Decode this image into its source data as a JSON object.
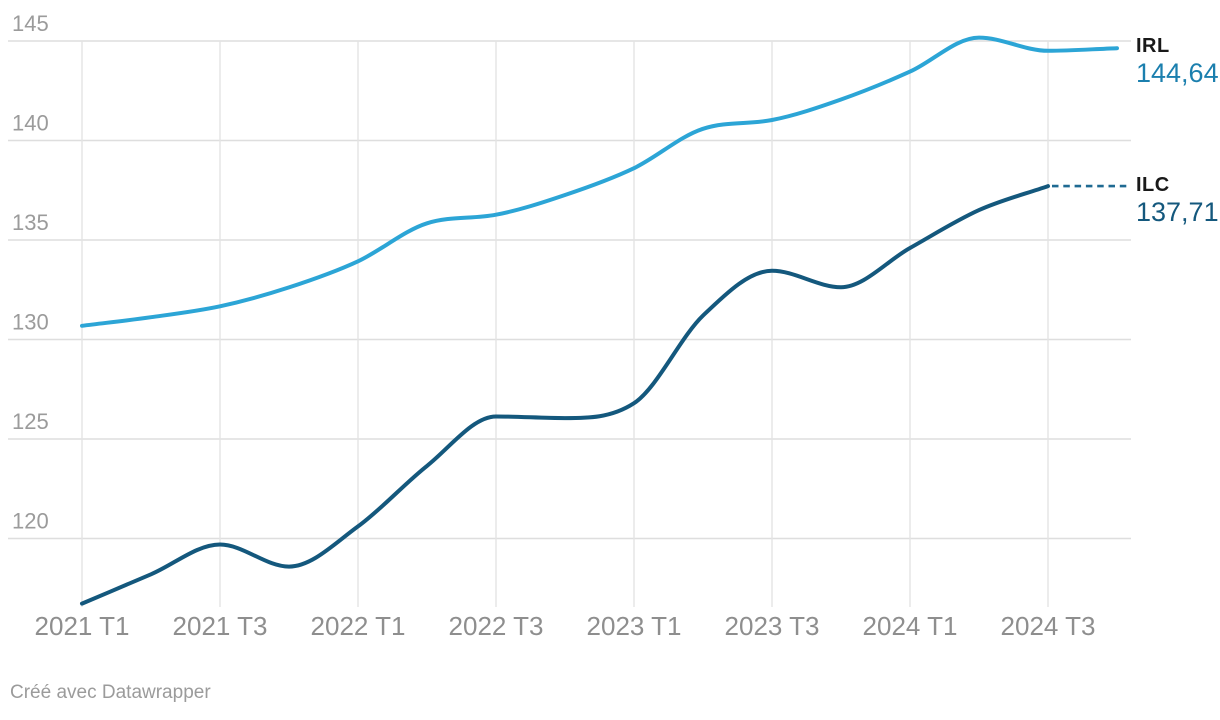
{
  "chart_data": {
    "type": "line",
    "x": [
      "2021 T1",
      "2021 T2",
      "2021 T3",
      "2021 T4",
      "2022 T1",
      "2022 T2",
      "2022 T3",
      "2022 T4",
      "2023 T1",
      "2023 T2",
      "2023 T3",
      "2023 T4",
      "2024 T1",
      "2024 T2",
      "2024 T3",
      "2024 T4"
    ],
    "x_tick_labels": [
      "2021 T1",
      "2021 T3",
      "2022 T1",
      "2022 T3",
      "2023 T1",
      "2023 T3",
      "2024 T1",
      "2024 T3"
    ],
    "y_ticks": [
      145,
      140,
      135,
      130,
      125,
      120
    ],
    "ylim": [
      116.3,
      145.5
    ],
    "grid": "both",
    "legend_position": "right-of-line-ends",
    "series": [
      {
        "name": "IRL",
        "value_label": "144,64",
        "color": "#2ca5d6",
        "value_label_color": "#1b7fae",
        "end_connector": "none",
        "values": [
          130.69,
          131.12,
          131.67,
          132.62,
          133.93,
          135.84,
          136.27,
          137.26,
          138.61,
          140.59,
          141.03,
          142.06,
          143.46,
          145.17,
          144.51,
          144.64
        ]
      },
      {
        "name": "ILC",
        "value_label": "137,71",
        "color": "#14587d",
        "value_label_color": "#14587d",
        "end_connector": "dotted",
        "values": [
          116.73,
          118.2,
          119.7,
          118.59,
          120.61,
          123.65,
          126.13,
          126.05,
          126.8,
          131.2,
          133.45,
          132.63,
          134.6,
          136.5,
          137.71
        ]
      }
    ]
  },
  "footer": {
    "credit": "Créé avec Datawrapper"
  },
  "colors": {
    "background": "#ffffff",
    "gridline_h": "#dedede",
    "gridline_v": "#e3e3e3",
    "y_tick_text": "#9b9b9b",
    "x_tick_text": "#8e8e8e",
    "series_name_text": "#191919"
  }
}
